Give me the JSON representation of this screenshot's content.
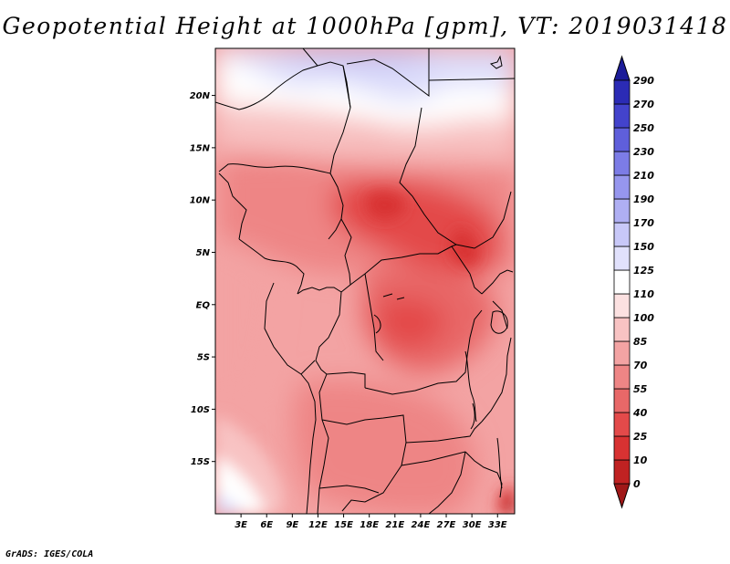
{
  "title": "Geopotential Height at 1000hPa [gpm], VT: 2019031418",
  "footer": "GrADS: IGES/COLA",
  "map": {
    "lon_range": [
      0,
      35
    ],
    "lat_range": [
      -20,
      24.5
    ],
    "y_ticks": [
      "20N",
      "15N",
      "10N",
      "5N",
      "EQ",
      "5S",
      "10S",
      "15S"
    ],
    "y_tick_values": [
      20,
      15,
      10,
      5,
      0,
      -5,
      -10,
      -15
    ],
    "x_ticks": [
      "3E",
      "6E",
      "9E",
      "12E",
      "15E",
      "18E",
      "21E",
      "24E",
      "27E",
      "30E",
      "33E"
    ],
    "x_tick_values": [
      3,
      6,
      9,
      12,
      15,
      18,
      21,
      24,
      27,
      30,
      33
    ]
  },
  "legend": {
    "labels": [
      "0",
      "10",
      "25",
      "40",
      "55",
      "70",
      "85",
      "100",
      "110",
      "125",
      "150",
      "170",
      "190",
      "210",
      "230",
      "250",
      "270",
      "290"
    ],
    "colors": [
      "#a01818",
      "#c02222",
      "#d83232",
      "#e34a4a",
      "#e86868",
      "#ee8585",
      "#f3a3a3",
      "#f8c3c3",
      "#fce1e1",
      "#ffffff",
      "#e1e1fc",
      "#c8c8f8",
      "#afaff3",
      "#9696ee",
      "#7c7ce6",
      "#5f5fdb",
      "#4343cc",
      "#2b2bb5",
      "#1c1c99"
    ]
  }
}
